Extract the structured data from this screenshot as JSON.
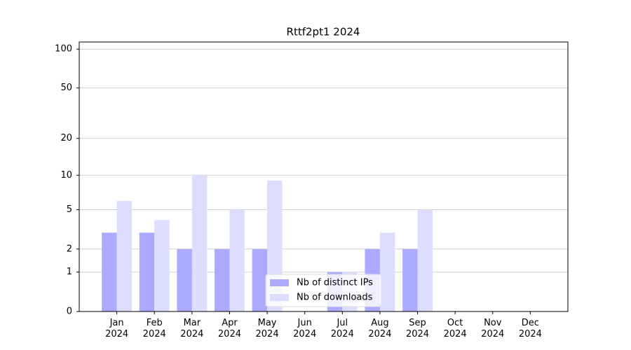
{
  "chart_data": {
    "type": "bar",
    "title": "Rttf2pt1 2024",
    "categories": [
      "Jan\n2024",
      "Feb\n2024",
      "Mar\n2024",
      "Apr\n2024",
      "May\n2024",
      "Jun\n2024",
      "Jul\n2024",
      "Aug\n2024",
      "Sep\n2024",
      "Oct\n2024",
      "Nov\n2024",
      "Dec\n2024"
    ],
    "series": [
      {
        "name": "Nb of distinct IPs",
        "color": "#aaaaff",
        "values": [
          3,
          3,
          2,
          2,
          2,
          0,
          1,
          2,
          2,
          0,
          0,
          0
        ]
      },
      {
        "name": "Nb of downloads",
        "color": "#ddddff",
        "values": [
          6,
          4,
          10,
          5,
          9,
          0,
          1,
          3,
          5,
          0,
          0,
          0
        ]
      }
    ],
    "yscale": "log1p",
    "ylim": [
      0,
      113.5
    ],
    "yticks": [
      0,
      1,
      2,
      5,
      10,
      20,
      50,
      100
    ],
    "grid": true,
    "legend": "lower center"
  }
}
